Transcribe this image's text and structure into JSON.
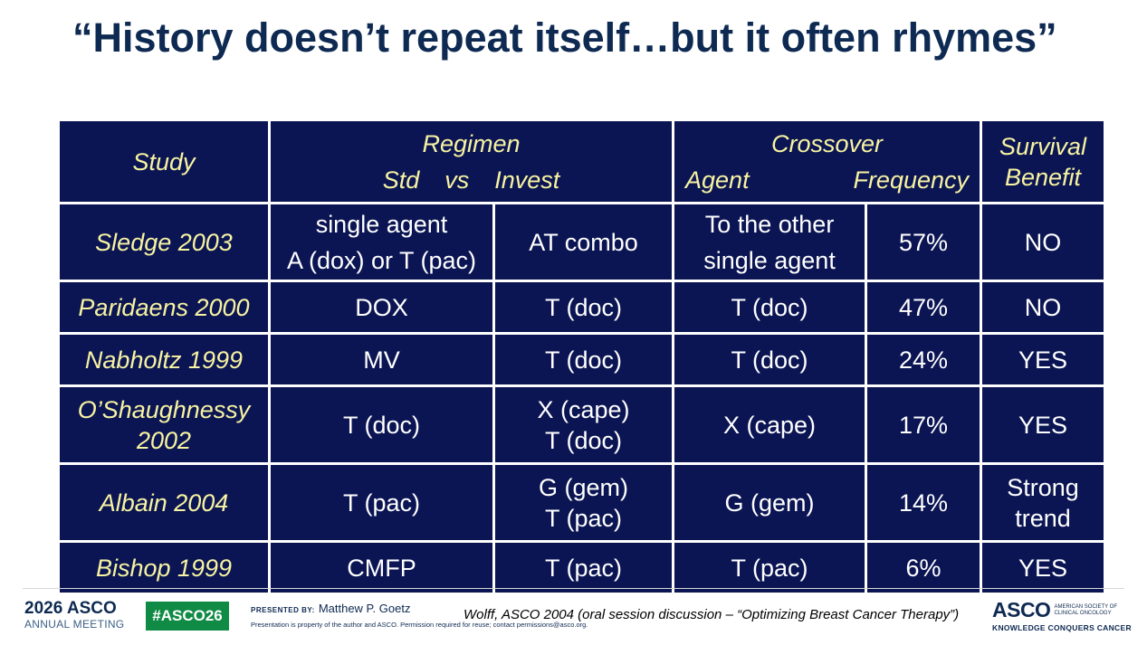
{
  "title": "“History doesn’t repeat itself…but it often rhymes”",
  "table": {
    "header": {
      "study": "Study",
      "regimen": "Regimen",
      "regimen_sub": {
        "std": "Std",
        "vs": "vs",
        "invest": "Invest"
      },
      "crossover": "Crossover",
      "crossover_sub": {
        "agent": "Agent",
        "frequency": "Frequency"
      },
      "survival_line1": "Survival",
      "survival_line2": "Benefit"
    },
    "rows": [
      {
        "study": [
          "Sledge 2003"
        ],
        "std": [
          "single agent",
          "A (dox) or T (pac)"
        ],
        "invest": [
          "AT combo"
        ],
        "agent": [
          "To the other",
          "single agent"
        ],
        "frequency": "57%",
        "survival": [
          "NO"
        ]
      },
      {
        "study": [
          "Paridaens 2000"
        ],
        "std": [
          "DOX"
        ],
        "invest": [
          "T (doc)"
        ],
        "agent": [
          "T (doc)"
        ],
        "frequency": "47%",
        "survival": [
          "NO"
        ]
      },
      {
        "study": [
          "Nabholtz 1999"
        ],
        "std": [
          "MV"
        ],
        "invest": [
          "T (doc)"
        ],
        "agent": [
          "T (doc)"
        ],
        "frequency": "24%",
        "survival": [
          "YES"
        ]
      },
      {
        "study": [
          "O’Shaughnessy",
          "2002"
        ],
        "std": [
          "T (doc)"
        ],
        "invest": [
          "X (cape)",
          "T (doc)"
        ],
        "agent": [
          "X (cape)"
        ],
        "frequency": "17%",
        "survival": [
          "YES"
        ]
      },
      {
        "study": [
          "Albain 2004"
        ],
        "std": [
          "T (pac)"
        ],
        "invest": [
          "G (gem)",
          "T (pac)"
        ],
        "agent": [
          "G (gem)"
        ],
        "frequency": "14%",
        "survival": [
          "Strong",
          "trend"
        ]
      },
      {
        "study": [
          "Bishop 1999"
        ],
        "std": [
          "CMFP"
        ],
        "invest": [
          "T (pac)"
        ],
        "agent": [
          "T (pac)"
        ],
        "frequency": "6%",
        "survival": [
          "YES"
        ]
      }
    ]
  },
  "footer": {
    "meeting_year": "2026",
    "meeting_brand": "ASCO",
    "meeting_sub": "ANNUAL MEETING",
    "hashtag": "#ASCO26",
    "presented_by_label": "PRESENTED BY:",
    "presenter": "Matthew P. Goetz",
    "notice": "Presentation is property of the author and ASCO. Permission required for reuse; contact permissions@asco.org.",
    "citation": "Wolff, ASCO 2004 (oral session discussion – “Optimizing Breast Cancer Therapy”)",
    "asco_logo": "ASCO",
    "asco_full_line1": "AMERICAN SOCIETY OF",
    "asco_full_line2": "CLINICAL ONCOLOGY",
    "asco_tagline": "KNOWLEDGE CONQUERS CANCER",
    "colors": {
      "navy": "#0b1553",
      "header_text": "#f7f3a2",
      "hashtag_bg": "#108b45",
      "title": "#0e2a52"
    }
  }
}
